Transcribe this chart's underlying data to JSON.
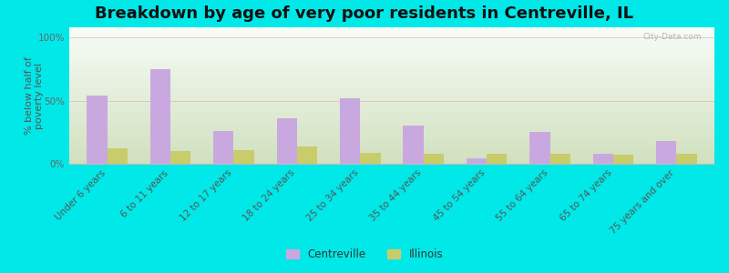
{
  "title": "Breakdown by age of very poor residents in Centreville, IL",
  "categories": [
    "Under 6 years",
    "6 to 11 years",
    "12 to 17 years",
    "18 to 24 years",
    "25 to 34 years",
    "35 to 44 years",
    "45 to 54 years",
    "55 to 64 years",
    "65 to 74 years",
    "75 years and over"
  ],
  "centreville_values": [
    54,
    75,
    26,
    36,
    52,
    30,
    4,
    25,
    8,
    18
  ],
  "illinois_values": [
    12,
    10,
    11,
    14,
    9,
    8,
    8,
    8,
    7,
    8
  ],
  "centreville_color": "#c9a8e0",
  "illinois_color": "#c8cc6a",
  "ylabel": "% below half of\npoverty level",
  "ylim": [
    0,
    108
  ],
  "yticks": [
    0,
    50,
    100
  ],
  "ytick_labels": [
    "0%",
    "50%",
    "100%"
  ],
  "background_outer": "#00e8e8",
  "title_fontsize": 13,
  "axis_label_fontsize": 8,
  "tick_fontsize": 7.5,
  "legend_labels": [
    "Centreville",
    "Illinois"
  ],
  "watermark": "City-Data.com"
}
